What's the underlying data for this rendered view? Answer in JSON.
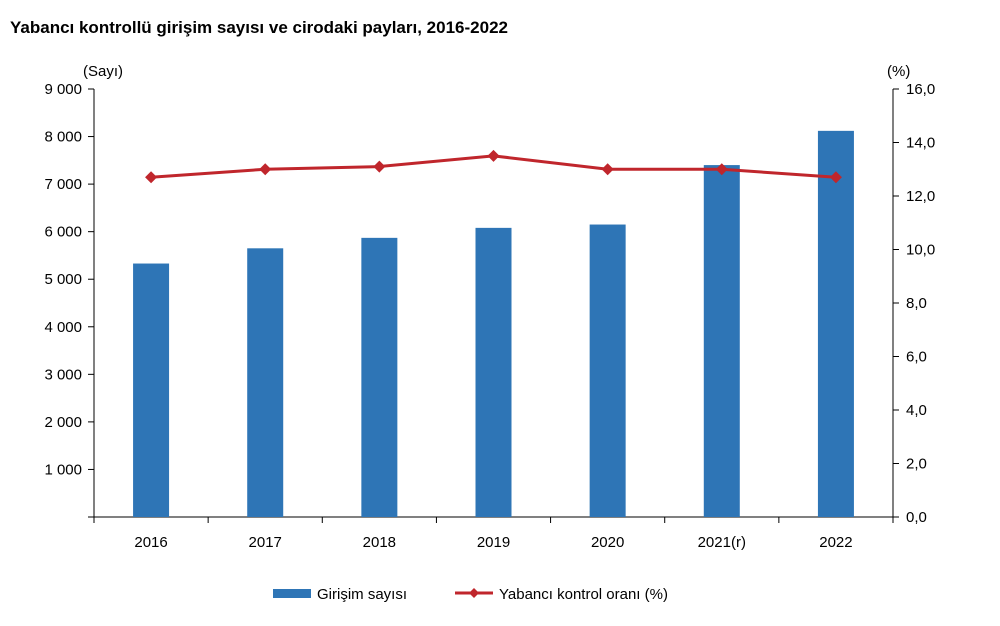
{
  "chart_data": {
    "type": "bar",
    "title": "Yabancı kontrollü girişim sayısı ve cirodaki payları, 2016-2022",
    "ylabel_left": "(Sayı)",
    "ylabel_right": "(%)",
    "categories": [
      "2016",
      "2017",
      "2018",
      "2019",
      "2020",
      "2021(r)",
      "2022"
    ],
    "y_left_ticks": [
      "",
      "1 000",
      "2 000",
      "3 000",
      "4 000",
      "5 000",
      "6 000",
      "7 000",
      "8 000",
      "9 000"
    ],
    "y_right_ticks": [
      "0,0",
      "2,0",
      "4,0",
      "6,0",
      "8,0",
      "10,0",
      "12,0",
      "14,0",
      "16,0"
    ],
    "ylim_left": [
      0,
      9000
    ],
    "ylim_right": [
      0,
      16
    ],
    "grid": false,
    "legend_position": "bottom",
    "series": [
      {
        "name": "Girişim sayısı",
        "type": "bar",
        "axis": "left",
        "color": "#2e75b6",
        "values": [
          5330,
          5650,
          5870,
          6080,
          6150,
          7400,
          8120
        ]
      },
      {
        "name": "Yabancı kontrol oranı (%)",
        "type": "line",
        "axis": "right",
        "color": "#c0262c",
        "marker": "diamond",
        "values": [
          12.7,
          13.0,
          13.1,
          13.5,
          13.0,
          13.0,
          12.7
        ]
      }
    ]
  }
}
